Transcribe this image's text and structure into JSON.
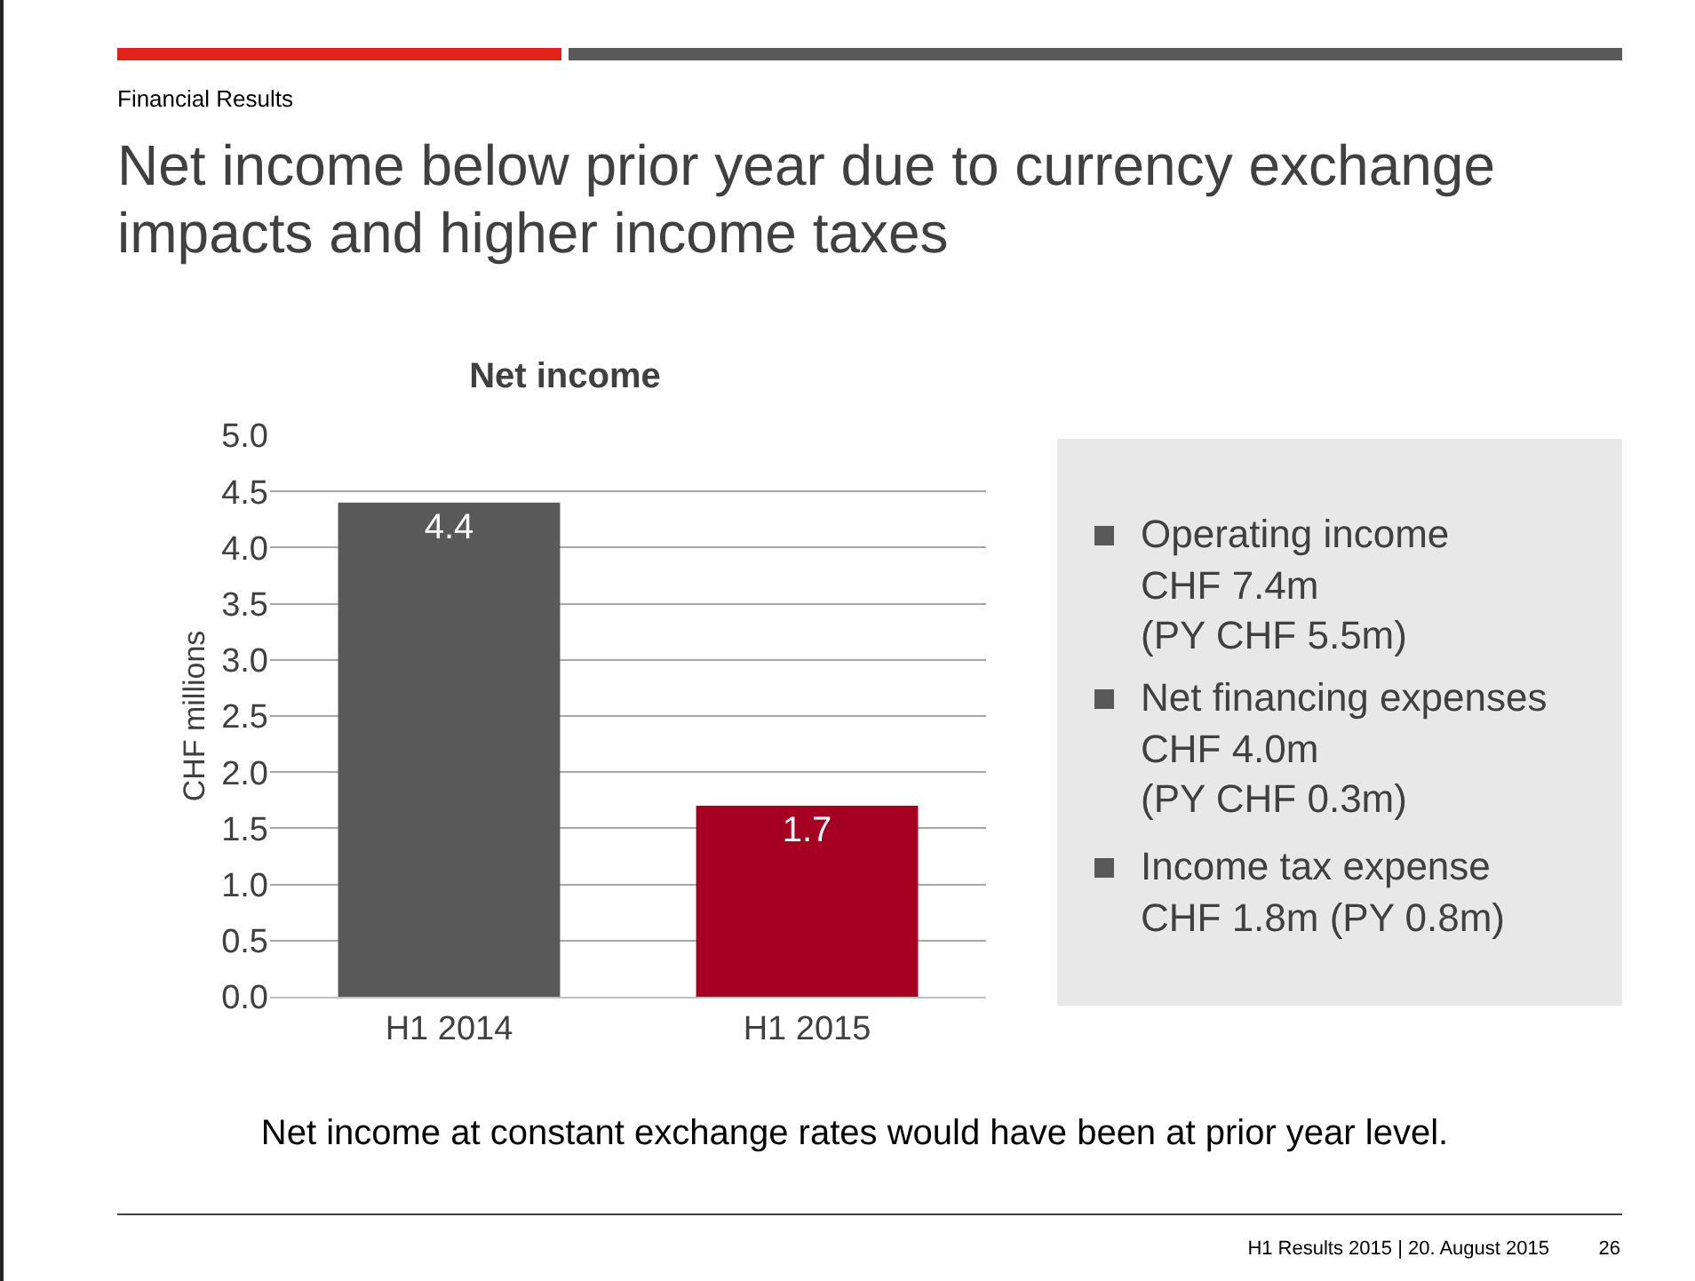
{
  "chart_data": {
    "type": "bar",
    "title": "Net income",
    "ylabel": "CHF millions",
    "categories": [
      "H1 2014",
      "H1 2015"
    ],
    "values": [
      4.4,
      1.7
    ],
    "colors": [
      "#595959",
      "#a50021"
    ],
    "ylim": [
      0,
      5
    ],
    "yticks": [
      {
        "value": 0,
        "label": "0.0"
      },
      {
        "value": 0.5,
        "label": "0.5"
      },
      {
        "value": 1,
        "label": "1.0"
      },
      {
        "value": 1.5,
        "label": "1.5"
      },
      {
        "value": 2,
        "label": "2.0"
      },
      {
        "value": 2.5,
        "label": "2.5"
      },
      {
        "value": 3,
        "label": "3.0"
      },
      {
        "value": 3.5,
        "label": "3.5"
      },
      {
        "value": 4,
        "label": "4.0"
      },
      {
        "value": 4.5,
        "label": "4.5"
      },
      {
        "value": 5,
        "label": "5.0"
      }
    ],
    "grid": "y",
    "data_labels": true,
    "annotations": [
      "Financial Results",
      "Net income below prior year due to currency exchange impacts and higher income taxes",
      "Operating income\nCHF 7.4m\n(PY CHF 5.5m)",
      "Net financing expenses\nCHF 4.0m\n(PY CHF 0.3m)",
      "Income tax expense\nCHF 1.8m (PY 0.8m)",
      "Net income at constant exchange rates would have been at prior year level.",
      "H1 Results 2015  |  20. August 2015",
      "26"
    ]
  }
}
